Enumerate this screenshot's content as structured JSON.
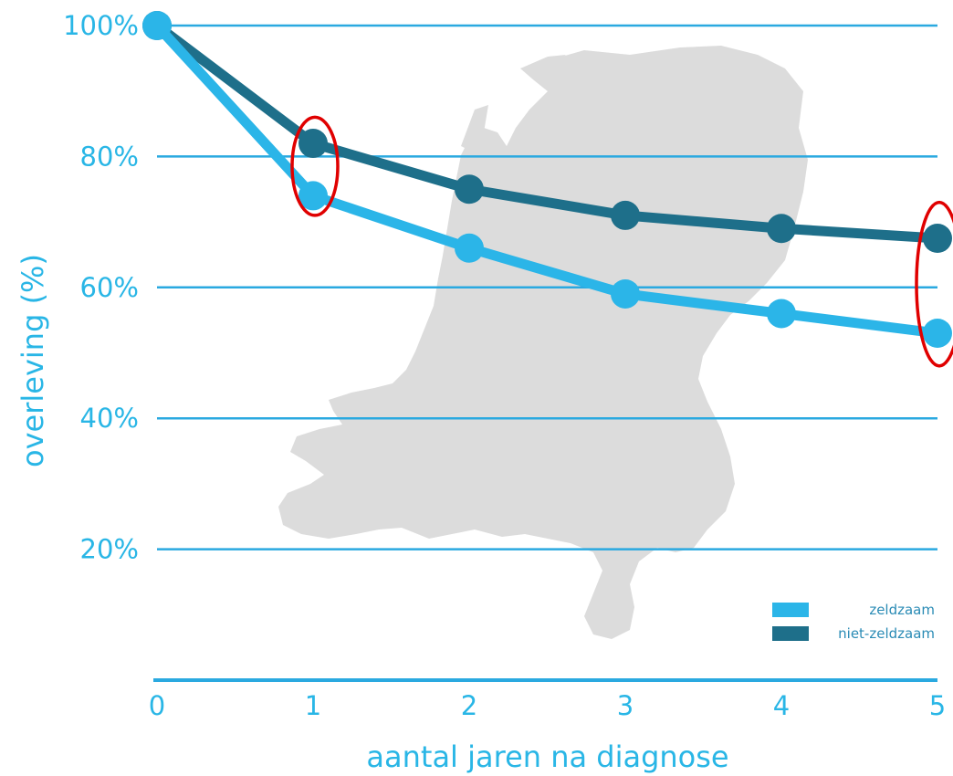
{
  "chart_data": {
    "type": "line",
    "title": "",
    "xlabel": "aantal jaren na diagnose",
    "ylabel": "overleving (%)",
    "x": [
      0,
      1,
      2,
      3,
      4,
      5
    ],
    "x_tick_labels": [
      "0",
      "1",
      "2",
      "3",
      "4",
      "5"
    ],
    "y_tick_labels": [
      "100%",
      "80%",
      "60%",
      "40%",
      "20%"
    ],
    "ylim": [
      0,
      100
    ],
    "xlim": [
      0,
      5
    ],
    "grid": "horizontal",
    "legend_position": "bottom-right",
    "series": [
      {
        "name": "zeldzaam",
        "color": "#2bb5e8",
        "values": [
          100,
          74,
          66,
          59,
          56,
          53
        ]
      },
      {
        "name": "niet-zeldzaam",
        "color": "#1e6f8a",
        "values": [
          100,
          82,
          75,
          71,
          69,
          67.5
        ]
      }
    ],
    "annotations": [
      {
        "type": "ellipse",
        "color": "#e00000",
        "at_x": 1,
        "y_range": [
          71,
          86
        ]
      },
      {
        "type": "ellipse",
        "color": "#e00000",
        "at_x": 5,
        "y_range": [
          48,
          73
        ]
      }
    ],
    "background_graphic": "map-of-netherlands",
    "grid_color": "#2aa9e0"
  }
}
